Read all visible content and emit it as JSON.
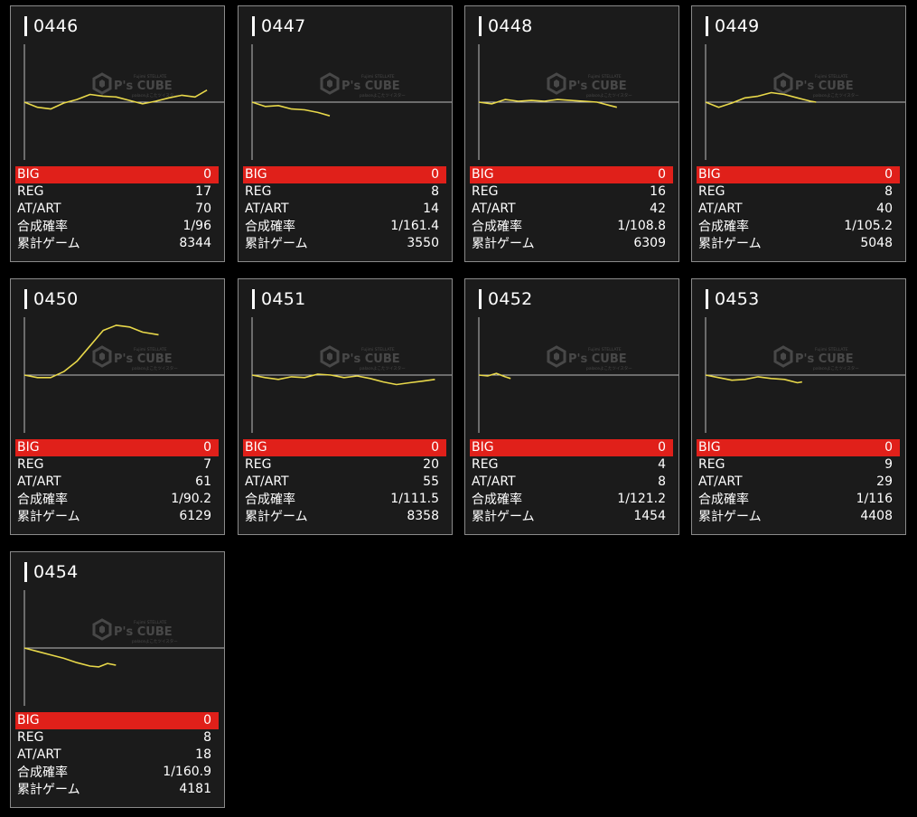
{
  "labels": {
    "big": "BIG",
    "reg": "REG",
    "at_art": "AT/ART",
    "combined_prob": "合成確率",
    "total_games": "累計ゲーム"
  },
  "watermark": {
    "brand": "P's CUBE",
    "tagline_top": "Fujimi STELLATE",
    "tagline_bottom": "palaceよこたツイスター"
  },
  "colors": {
    "big_row": "#e0201a",
    "line": "#e8d84a",
    "card_bg": "#1b1b1b",
    "axis": "#bdbdbd"
  },
  "machines": [
    {
      "id": "0446",
      "big": "0",
      "reg": "17",
      "at_art": "70",
      "combined_prob": "1/96",
      "total_games": "8344",
      "trend": [
        [
          0,
          0
        ],
        [
          600,
          -6
        ],
        [
          1200,
          -8
        ],
        [
          1800,
          -1
        ],
        [
          2400,
          3
        ],
        [
          3000,
          9
        ],
        [
          3600,
          7
        ],
        [
          4200,
          6
        ],
        [
          4800,
          2
        ],
        [
          5400,
          -2
        ],
        [
          6000,
          1
        ],
        [
          6600,
          5
        ],
        [
          7200,
          8
        ],
        [
          7800,
          6
        ],
        [
          8344,
          14
        ]
      ]
    },
    {
      "id": "0447",
      "big": "0",
      "reg": "8",
      "at_art": "14",
      "combined_prob": "1/161.4",
      "total_games": "3550",
      "trend": [
        [
          0,
          0
        ],
        [
          600,
          -5
        ],
        [
          1200,
          -4
        ],
        [
          1800,
          -8
        ],
        [
          2400,
          -9
        ],
        [
          3000,
          -12
        ],
        [
          3550,
          -16
        ]
      ]
    },
    {
      "id": "0448",
      "big": "0",
      "reg": "16",
      "at_art": "42",
      "combined_prob": "1/108.8",
      "total_games": "6309",
      "trend": [
        [
          0,
          0
        ],
        [
          600,
          -2
        ],
        [
          1200,
          3
        ],
        [
          1800,
          1
        ],
        [
          2400,
          2
        ],
        [
          3000,
          1
        ],
        [
          3600,
          3
        ],
        [
          4200,
          2
        ],
        [
          4800,
          1
        ],
        [
          5400,
          0
        ],
        [
          6000,
          -4
        ],
        [
          6309,
          -6
        ]
      ]
    },
    {
      "id": "0449",
      "big": "0",
      "reg": "8",
      "at_art": "40",
      "combined_prob": "1/105.2",
      "total_games": "5048",
      "trend": [
        [
          0,
          0
        ],
        [
          600,
          -6
        ],
        [
          1200,
          -1
        ],
        [
          1800,
          5
        ],
        [
          2400,
          7
        ],
        [
          3000,
          11
        ],
        [
          3600,
          9
        ],
        [
          4200,
          5
        ],
        [
          4800,
          1
        ],
        [
          5048,
          0
        ]
      ]
    },
    {
      "id": "0450",
      "big": "0",
      "reg": "7",
      "at_art": "61",
      "combined_prob": "1/90.2",
      "total_games": "6129",
      "trend": [
        [
          0,
          0
        ],
        [
          600,
          -3
        ],
        [
          1200,
          -3
        ],
        [
          1800,
          4
        ],
        [
          2400,
          16
        ],
        [
          3000,
          34
        ],
        [
          3600,
          52
        ],
        [
          4200,
          58
        ],
        [
          4800,
          56
        ],
        [
          5400,
          50
        ],
        [
          6129,
          47
        ]
      ]
    },
    {
      "id": "0451",
      "big": "0",
      "reg": "20",
      "at_art": "55",
      "combined_prob": "1/111.5",
      "total_games": "8358",
      "trend": [
        [
          0,
          0
        ],
        [
          600,
          -3
        ],
        [
          1200,
          -5
        ],
        [
          1800,
          -2
        ],
        [
          2400,
          -3
        ],
        [
          3000,
          1
        ],
        [
          3600,
          0
        ],
        [
          4200,
          -3
        ],
        [
          4800,
          -1
        ],
        [
          5400,
          -4
        ],
        [
          6000,
          -8
        ],
        [
          6600,
          -11
        ],
        [
          7200,
          -9
        ],
        [
          7800,
          -7
        ],
        [
          8358,
          -5
        ]
      ]
    },
    {
      "id": "0452",
      "big": "0",
      "reg": "4",
      "at_art": "8",
      "combined_prob": "1/121.2",
      "total_games": "1454",
      "trend": [
        [
          0,
          0
        ],
        [
          400,
          -1
        ],
        [
          800,
          2
        ],
        [
          1200,
          -2
        ],
        [
          1454,
          -4
        ]
      ]
    },
    {
      "id": "0453",
      "big": "0",
      "reg": "9",
      "at_art": "29",
      "combined_prob": "1/116",
      "total_games": "4408",
      "trend": [
        [
          0,
          0
        ],
        [
          600,
          -3
        ],
        [
          1200,
          -6
        ],
        [
          1800,
          -5
        ],
        [
          2400,
          -2
        ],
        [
          3000,
          -4
        ],
        [
          3600,
          -5
        ],
        [
          4200,
          -9
        ],
        [
          4408,
          -8
        ]
      ]
    },
    {
      "id": "0454",
      "big": "0",
      "reg": "8",
      "at_art": "18",
      "combined_prob": "1/160.9",
      "total_games": "4181",
      "trend": [
        [
          0,
          0
        ],
        [
          600,
          -4
        ],
        [
          1200,
          -8
        ],
        [
          1800,
          -12
        ],
        [
          2400,
          -17
        ],
        [
          3000,
          -21
        ],
        [
          3400,
          -22
        ],
        [
          3800,
          -18
        ],
        [
          4181,
          -20
        ]
      ]
    }
  ]
}
